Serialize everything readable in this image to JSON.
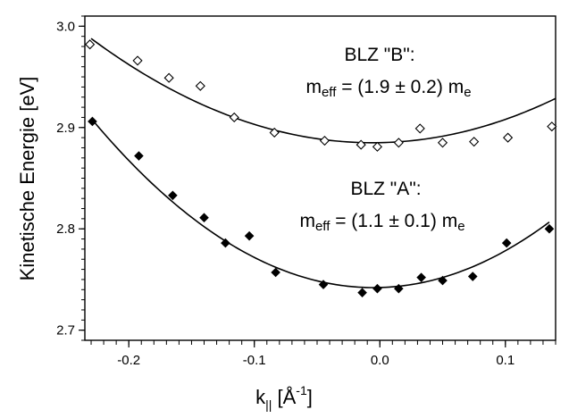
{
  "chart_data": {
    "type": "scatter",
    "xlabel_main": "k",
    "xlabel_sub": "||",
    "xlabel_unit_open": " [Å",
    "xlabel_unit_sup": "-1",
    "xlabel_unit_close": "]",
    "ylabel": "Kinetische Energie [eV]",
    "xlim": [
      -0.235,
      0.14
    ],
    "ylim": [
      2.69,
      3.01
    ],
    "x_ticks": [
      -0.2,
      -0.1,
      0.0,
      0.1
    ],
    "x_tick_labels": [
      "-0.2",
      "-0.1",
      "0.0",
      "0.1"
    ],
    "y_ticks": [
      2.7,
      2.8,
      2.9,
      3.0
    ],
    "y_tick_labels": [
      "2.7",
      "2.8",
      "2.9",
      "3.0"
    ],
    "series": [
      {
        "name": "BLZ \"B\"",
        "marker": "open-diamond",
        "points": [
          [
            -0.231,
            2.982
          ],
          [
            -0.193,
            2.966
          ],
          [
            -0.168,
            2.949
          ],
          [
            -0.143,
            2.941
          ],
          [
            -0.116,
            2.91
          ],
          [
            -0.084,
            2.895
          ],
          [
            -0.044,
            2.887
          ],
          [
            -0.015,
            2.883
          ],
          [
            -0.002,
            2.881
          ],
          [
            0.015,
            2.885
          ],
          [
            0.032,
            2.899
          ],
          [
            0.05,
            2.885
          ],
          [
            0.075,
            2.886
          ],
          [
            0.102,
            2.89
          ],
          [
            0.137,
            2.901
          ]
        ],
        "fit": {
          "vertex_x": -0.006,
          "vertex_y": 2.885,
          "curvature": 2.05,
          "x_range": [
            -0.23,
            0.14
          ]
        }
      },
      {
        "name": "BLZ \"A\"",
        "marker": "filled-diamond",
        "points": [
          [
            -0.229,
            2.906
          ],
          [
            -0.192,
            2.872
          ],
          [
            -0.165,
            2.833
          ],
          [
            -0.14,
            2.811
          ],
          [
            -0.123,
            2.786
          ],
          [
            -0.104,
            2.793
          ],
          [
            -0.083,
            2.757
          ],
          [
            -0.045,
            2.745
          ],
          [
            -0.014,
            2.737
          ],
          [
            -0.002,
            2.741
          ],
          [
            0.015,
            2.741
          ],
          [
            0.033,
            2.752
          ],
          [
            0.05,
            2.749
          ],
          [
            0.074,
            2.753
          ],
          [
            0.101,
            2.786
          ],
          [
            0.135,
            2.8
          ]
        ],
        "fit": {
          "vertex_x": -0.005,
          "vertex_y": 2.742,
          "curvature": 3.3,
          "x_range": [
            -0.229,
            0.135
          ]
        }
      }
    ],
    "annotations": [
      {
        "id": "B",
        "title": "BLZ \"B\":",
        "m": "m",
        "eff": "eff",
        "formula": " = (1.9 ± 0.2) m",
        "e": "e"
      },
      {
        "id": "A",
        "title": "BLZ \"A\":",
        "m": "m",
        "eff": "eff",
        "formula": " = (1.1 ± 0.1) m",
        "e": "e"
      }
    ]
  }
}
